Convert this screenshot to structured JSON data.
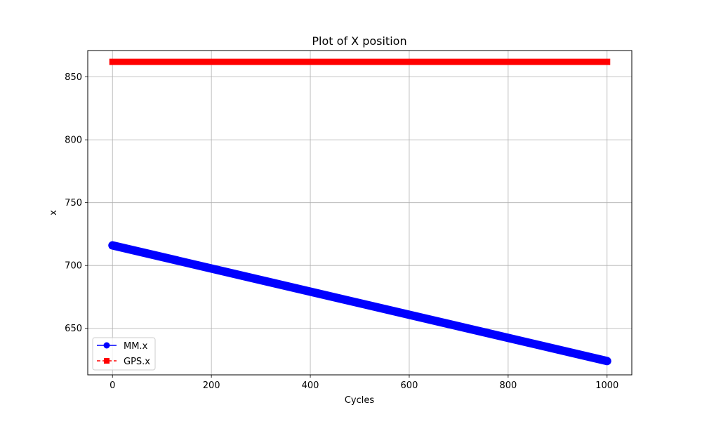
{
  "chart_data": {
    "type": "line",
    "title": "Plot of X position",
    "xlabel": "Cycles",
    "ylabel": "x",
    "xlim": [
      -50,
      1050
    ],
    "ylim": [
      613,
      871
    ],
    "xticks": [
      0,
      200,
      400,
      600,
      800,
      1000
    ],
    "yticks": [
      650,
      700,
      750,
      800,
      850
    ],
    "xtick_labels": [
      "0",
      "200",
      "400",
      "600",
      "800",
      "1000"
    ],
    "ytick_labels": [
      "650",
      "700",
      "750",
      "800",
      "850"
    ],
    "grid": true,
    "legend_position": "lower-left",
    "series": [
      {
        "name": "MM.x",
        "color": "#0000ff",
        "marker": "circle",
        "linestyle": "solid",
        "x_start": 0,
        "x_end": 1000,
        "y_start": 716,
        "y_end": 624
      },
      {
        "name": "GPS.x",
        "color": "#ff0000",
        "marker": "square",
        "linestyle": "dashed",
        "x_start": 0,
        "x_end": 1000,
        "y_start": 862,
        "y_end": 862
      }
    ]
  }
}
